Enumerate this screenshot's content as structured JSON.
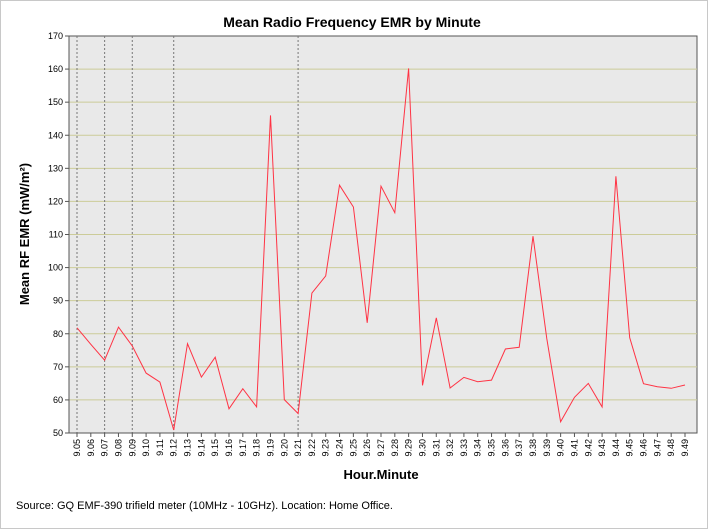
{
  "chart_data": {
    "type": "line",
    "title": "Mean Radio Frequency EMR by Minute",
    "xlabel": "Hour.Minute",
    "ylabel": "Mean RF EMR (mW/m²)",
    "ylim": [
      50,
      170
    ],
    "yticks": [
      50,
      60,
      70,
      80,
      90,
      100,
      110,
      120,
      130,
      140,
      150,
      160,
      170
    ],
    "grid": true,
    "x": [
      "9.05",
      "9.06",
      "9.07",
      "9.08",
      "9.09",
      "9.10",
      "9.11",
      "9.12",
      "9.13",
      "9.14",
      "9.15",
      "9.16",
      "9.17",
      "9.18",
      "9.19",
      "9.20",
      "9.21",
      "9.22",
      "9.23",
      "9.24",
      "9.25",
      "9.26",
      "9.27",
      "9.28",
      "9.29",
      "9.30",
      "9.31",
      "9.32",
      "9.33",
      "9.34",
      "9.35",
      "9.36",
      "9.37",
      "9.38",
      "9.39",
      "9.40",
      "9.41",
      "9.42",
      "9.43",
      "9.44",
      "9.45",
      "9.46",
      "9.47",
      "9.48",
      "9.49"
    ],
    "series": [
      {
        "values": [
          81.8,
          76.8,
          72.0,
          82.0,
          76.3,
          68.1,
          65.4,
          50.9,
          77.0,
          66.9,
          72.9,
          57.3,
          63.4,
          57.9,
          146.0,
          60.1,
          55.9,
          92.3,
          97.5,
          124.9,
          118.3,
          83.3,
          124.6,
          116.6,
          160.2,
          64.4,
          84.8,
          63.6,
          66.8,
          65.5,
          66.0,
          75.4,
          75.9,
          109.5,
          78.5,
          53.4,
          60.8,
          65.0,
          57.9,
          127.6,
          78.8,
          64.9,
          64.0,
          63.5,
          64.5
        ],
        "color": "#ff3344"
      }
    ],
    "vertical_markers": [
      "9.05",
      "9.07",
      "9.09",
      "9.12",
      "9.21"
    ],
    "colors": {
      "plot_background": "#e9e9e9",
      "gridline": "#cccc99",
      "marker_line": "#777777",
      "series": "#ff3344"
    }
  },
  "footer": {
    "source": "Source: GQ EMF-390 trifield meter (10MHz - 10GHz). Location: Home Office."
  }
}
